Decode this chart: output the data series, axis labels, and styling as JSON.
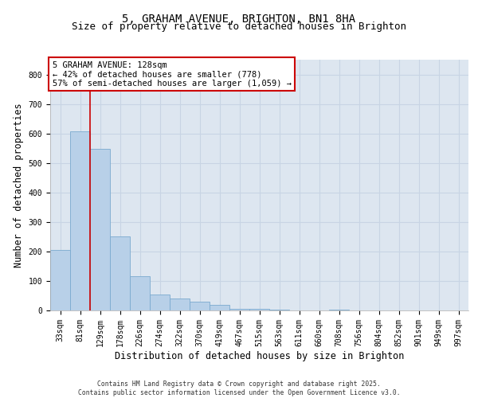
{
  "title_line1": "5, GRAHAM AVENUE, BRIGHTON, BN1 8HA",
  "title_line2": "Size of property relative to detached houses in Brighton",
  "xlabel": "Distribution of detached houses by size in Brighton",
  "ylabel": "Number of detached properties",
  "bar_values": [
    205,
    608,
    548,
    250,
    115,
    55,
    40,
    30,
    20,
    5,
    5,
    2,
    0,
    0,
    2,
    0,
    0,
    0,
    0,
    0,
    0
  ],
  "bin_labels": [
    "33sqm",
    "81sqm",
    "129sqm",
    "178sqm",
    "226sqm",
    "274sqm",
    "322sqm",
    "370sqm",
    "419sqm",
    "467sqm",
    "515sqm",
    "563sqm",
    "611sqm",
    "660sqm",
    "708sqm",
    "756sqm",
    "804sqm",
    "852sqm",
    "901sqm",
    "949sqm",
    "997sqm"
  ],
  "bar_color": "#b8d0e8",
  "bar_edge_color": "#7aaacf",
  "grid_color": "#c8d4e4",
  "bg_color": "#dde6f0",
  "vline_color": "#cc0000",
  "annotation_text": "5 GRAHAM AVENUE: 128sqm\n← 42% of detached houses are smaller (778)\n57% of semi-detached houses are larger (1,059) →",
  "annotation_box_color": "#cc0000",
  "ylim": [
    0,
    850
  ],
  "yticks": [
    0,
    100,
    200,
    300,
    400,
    500,
    600,
    700,
    800
  ],
  "footer_line1": "Contains HM Land Registry data © Crown copyright and database right 2025.",
  "footer_line2": "Contains public sector information licensed under the Open Government Licence v3.0.",
  "title_fontsize": 10,
  "tick_fontsize": 7,
  "axis_label_fontsize": 8.5
}
